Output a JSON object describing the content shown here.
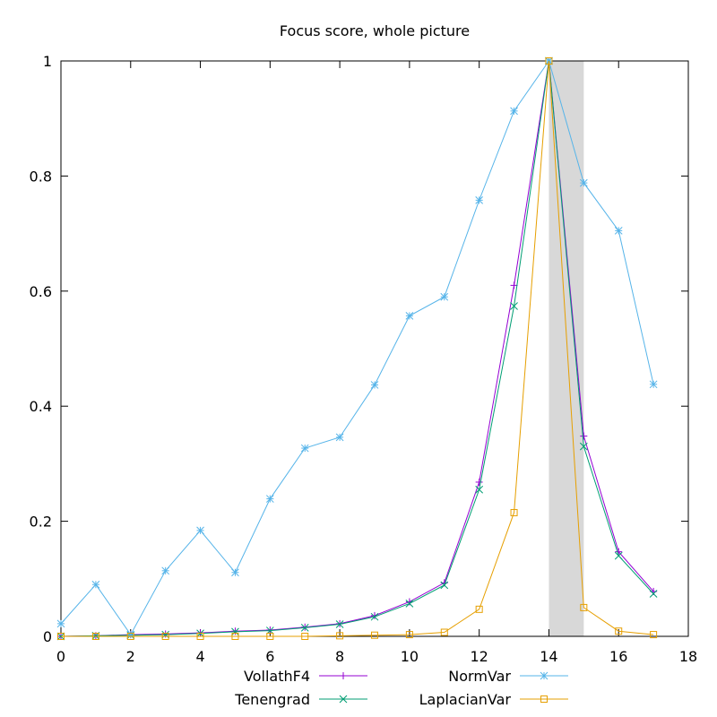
{
  "chart_data": {
    "type": "line",
    "title": "Focus score, whole picture",
    "xlabel": "",
    "ylabel": "",
    "xlim": [
      0,
      18
    ],
    "ylim": [
      0,
      1
    ],
    "xticks": [
      "0",
      "2",
      "4",
      "6",
      "8",
      "10",
      "12",
      "14",
      "16",
      "18"
    ],
    "yticks": [
      "0",
      "0.2",
      "0.4",
      "0.6",
      "0.8",
      "1"
    ],
    "grid": false,
    "legend_position": "bottom",
    "highlight_band": {
      "x_from": 14,
      "x_to": 15,
      "color": "#d8d8d8"
    },
    "x": [
      0,
      1,
      2,
      3,
      4,
      5,
      6,
      7,
      8,
      9,
      10,
      11,
      12,
      13,
      14,
      15,
      16,
      17
    ],
    "series": [
      {
        "name": "VollathF4",
        "color": "#9400d3",
        "marker": "plus",
        "values": [
          0.0,
          0.001,
          0.003,
          0.004,
          0.006,
          0.009,
          0.011,
          0.016,
          0.022,
          0.036,
          0.06,
          0.093,
          0.268,
          0.61,
          1.0,
          0.348,
          0.147,
          0.078
        ]
      },
      {
        "name": "Tenengrad",
        "color": "#009e73",
        "marker": "cross",
        "values": [
          0.0,
          0.001,
          0.002,
          0.003,
          0.005,
          0.008,
          0.01,
          0.015,
          0.021,
          0.034,
          0.057,
          0.089,
          0.255,
          0.574,
          1.0,
          0.33,
          0.14,
          0.074
        ]
      },
      {
        "name": "NormVar",
        "color": "#56b4e9",
        "marker": "star",
        "values": [
          0.022,
          0.09,
          0.003,
          0.114,
          0.184,
          0.111,
          0.239,
          0.327,
          0.346,
          0.437,
          0.557,
          0.59,
          0.758,
          0.913,
          1.0,
          0.788,
          0.705,
          0.438
        ]
      },
      {
        "name": "LaplacianVar",
        "color": "#e69f00",
        "marker": "square",
        "values": [
          0.0,
          0.0,
          0.0,
          0.0,
          0.0,
          0.0,
          0.0,
          0.0,
          0.001,
          0.002,
          0.003,
          0.007,
          0.047,
          0.215,
          1.0,
          0.05,
          0.009,
          0.003
        ]
      }
    ]
  }
}
